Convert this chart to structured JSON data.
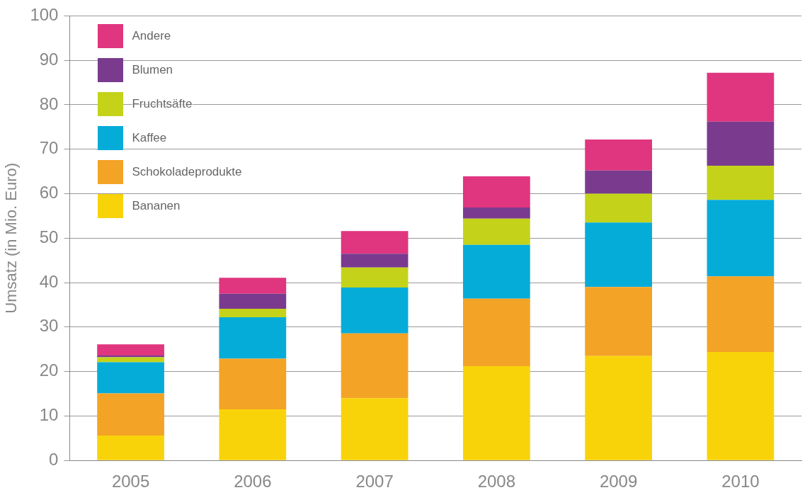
{
  "chart_data": {
    "type": "bar",
    "stacked": true,
    "ylabel": "Umsatz (in Mio. Euro)",
    "categories": [
      "2005",
      "2006",
      "2007",
      "2008",
      "2009",
      "2010"
    ],
    "series": [
      {
        "name": "Bananen",
        "color": "#f9d30a",
        "values": [
          5.6,
          11.5,
          14.0,
          21.2,
          23.5,
          24.4
        ]
      },
      {
        "name": "Schokoladeprodukte",
        "color": "#f3a325",
        "values": [
          9.5,
          11.4,
          14.6,
          15.2,
          15.5,
          17.0
        ]
      },
      {
        "name": "Kaffee",
        "color": "#06acd8",
        "values": [
          7.0,
          9.3,
          10.3,
          12.1,
          14.5,
          17.2
        ]
      },
      {
        "name": "Fruchtsäfte",
        "color": "#c4d31a",
        "values": [
          1.1,
          1.9,
          4.5,
          5.9,
          6.5,
          7.7
        ]
      },
      {
        "name": "Blumen",
        "color": "#7a3b8f",
        "values": [
          0.4,
          3.4,
          3.1,
          2.5,
          5.2,
          9.9
        ]
      },
      {
        "name": "Andere",
        "color": "#e0357f",
        "values": [
          2.5,
          3.6,
          5.1,
          7.0,
          7.0,
          11.0
        ]
      }
    ],
    "ylim": [
      0,
      100
    ],
    "yticks": [
      0,
      10,
      20,
      30,
      40,
      50,
      60,
      70,
      80,
      90,
      100
    ],
    "grid": "y",
    "legend": "top left"
  }
}
